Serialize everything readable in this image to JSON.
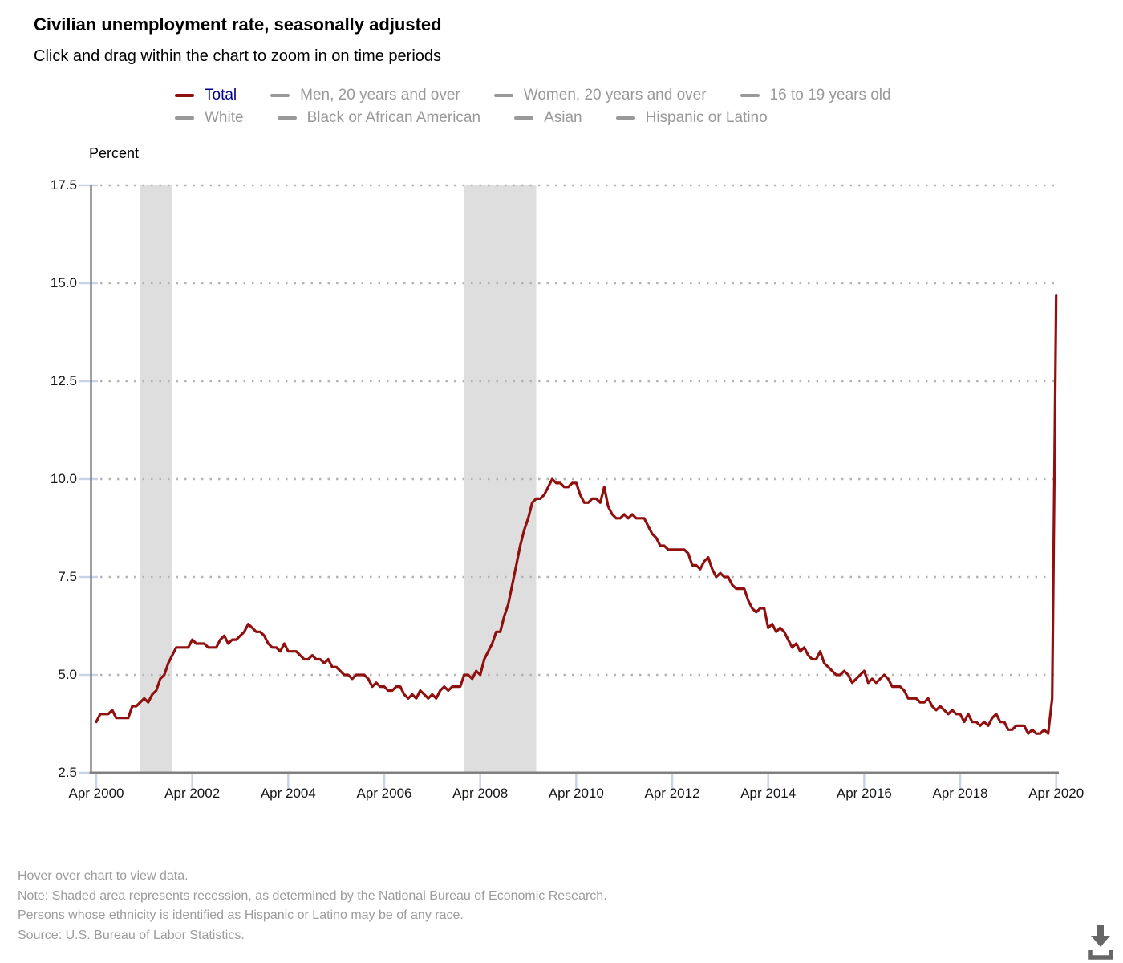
{
  "header": {
    "title": "Civilian unemployment rate, seasonally adjusted",
    "subtitle": "Click and drag within the chart to zoom in on time periods"
  },
  "legend": {
    "active_swatch_color": "#8f1111",
    "active_label_color": "#00008f",
    "inactive_color": "#999999",
    "rows": [
      [
        {
          "label": "Total",
          "active": true
        },
        {
          "label": "Men, 20 years and over",
          "active": false
        },
        {
          "label": "Women, 20 years and over",
          "active": false
        },
        {
          "label": "16 to 19 years old",
          "active": false
        }
      ],
      [
        {
          "label": "White",
          "active": false
        },
        {
          "label": "Black or African American",
          "active": false
        },
        {
          "label": "Asian",
          "active": false
        },
        {
          "label": "Hispanic or Latino",
          "active": false
        }
      ]
    ]
  },
  "chart_data": {
    "type": "line",
    "title": "Civilian unemployment rate, seasonally adjusted",
    "ylabel": "Percent",
    "xlabel": "",
    "ylim": [
      2.5,
      17.5
    ],
    "y_ticks": [
      2.5,
      5.0,
      7.5,
      10.0,
      12.5,
      15.0,
      17.5
    ],
    "y_tick_labels": [
      "2.5",
      "5.0",
      "7.5",
      "10.0",
      "12.5",
      "15.0",
      "17.5"
    ],
    "x_tick_labels": [
      "Apr 2000",
      "Apr 2002",
      "Apr 2004",
      "Apr 2006",
      "Apr 2008",
      "Apr 2010",
      "Apr 2012",
      "Apr 2014",
      "Apr 2016",
      "Apr 2018",
      "Apr 2020"
    ],
    "x_tick_month_index": [
      0,
      24,
      48,
      72,
      96,
      120,
      144,
      168,
      192,
      216,
      240
    ],
    "x_start": "Apr 2000",
    "x_end": "Apr 2020",
    "frequency": "monthly",
    "grid": "dotted-horizontal",
    "legend_position": "top",
    "colors": {
      "line": "#901010",
      "recession_band": "#dedede",
      "gridline_dots": "#b3b3b3",
      "axis": "#808080",
      "tick": "#c7d4e8"
    },
    "recessions": [
      {
        "start_month_index": 11,
        "end_month_index": 19,
        "label": "Mar 2001 - Nov 2001"
      },
      {
        "start_month_index": 92,
        "end_month_index": 110,
        "label": "Dec 2007 - Jun 2009"
      }
    ],
    "series": [
      {
        "name": "Total",
        "color": "#901010",
        "values": [
          3.8,
          4.0,
          4.0,
          4.0,
          4.1,
          3.9,
          3.9,
          3.9,
          3.9,
          4.2,
          4.2,
          4.3,
          4.4,
          4.3,
          4.5,
          4.6,
          4.9,
          5.0,
          5.3,
          5.5,
          5.7,
          5.7,
          5.7,
          5.7,
          5.9,
          5.8,
          5.8,
          5.8,
          5.7,
          5.7,
          5.7,
          5.9,
          6.0,
          5.8,
          5.9,
          5.9,
          6.0,
          6.1,
          6.3,
          6.2,
          6.1,
          6.1,
          6.0,
          5.8,
          5.7,
          5.7,
          5.6,
          5.8,
          5.6,
          5.6,
          5.6,
          5.5,
          5.4,
          5.4,
          5.5,
          5.4,
          5.4,
          5.3,
          5.4,
          5.2,
          5.2,
          5.1,
          5.0,
          5.0,
          4.9,
          5.0,
          5.0,
          5.0,
          4.9,
          4.7,
          4.8,
          4.7,
          4.7,
          4.6,
          4.6,
          4.7,
          4.7,
          4.5,
          4.4,
          4.5,
          4.4,
          4.6,
          4.5,
          4.4,
          4.5,
          4.4,
          4.6,
          4.7,
          4.6,
          4.7,
          4.7,
          4.7,
          5.0,
          5.0,
          4.9,
          5.1,
          5.0,
          5.4,
          5.6,
          5.8,
          6.1,
          6.1,
          6.5,
          6.8,
          7.3,
          7.8,
          8.3,
          8.7,
          9.0,
          9.4,
          9.5,
          9.5,
          9.6,
          9.8,
          10.0,
          9.9,
          9.9,
          9.8,
          9.8,
          9.9,
          9.9,
          9.6,
          9.4,
          9.4,
          9.5,
          9.5,
          9.4,
          9.8,
          9.3,
          9.1,
          9.0,
          9.0,
          9.1,
          9.0,
          9.1,
          9.0,
          9.0,
          9.0,
          8.8,
          8.6,
          8.5,
          8.3,
          8.3,
          8.2,
          8.2,
          8.2,
          8.2,
          8.2,
          8.1,
          7.8,
          7.8,
          7.7,
          7.9,
          8.0,
          7.7,
          7.5,
          7.6,
          7.5,
          7.5,
          7.3,
          7.2,
          7.2,
          7.2,
          6.9,
          6.7,
          6.6,
          6.7,
          6.7,
          6.2,
          6.3,
          6.1,
          6.2,
          6.1,
          5.9,
          5.7,
          5.8,
          5.6,
          5.7,
          5.5,
          5.4,
          5.4,
          5.6,
          5.3,
          5.2,
          5.1,
          5.0,
          5.0,
          5.1,
          5.0,
          4.8,
          4.9,
          5.0,
          5.1,
          4.8,
          4.9,
          4.8,
          4.9,
          5.0,
          4.9,
          4.7,
          4.7,
          4.7,
          4.6,
          4.4,
          4.4,
          4.4,
          4.3,
          4.3,
          4.4,
          4.2,
          4.1,
          4.2,
          4.1,
          4.0,
          4.1,
          4.0,
          4.0,
          3.8,
          4.0,
          3.8,
          3.8,
          3.7,
          3.8,
          3.7,
          3.9,
          4.0,
          3.8,
          3.8,
          3.6,
          3.6,
          3.7,
          3.7,
          3.7,
          3.5,
          3.6,
          3.5,
          3.5,
          3.6,
          3.5,
          4.4,
          14.7
        ]
      }
    ]
  },
  "footer": {
    "lines": [
      "Hover over chart to view data.",
      "Note: Shaded area represents recession, as determined by the National Bureau of Economic Research.",
      "Persons whose ethnicity is identified as Hispanic or Latino may be of any race.",
      "Source: U.S. Bureau of Labor Statistics."
    ]
  },
  "icons": {
    "download": "download-icon"
  }
}
